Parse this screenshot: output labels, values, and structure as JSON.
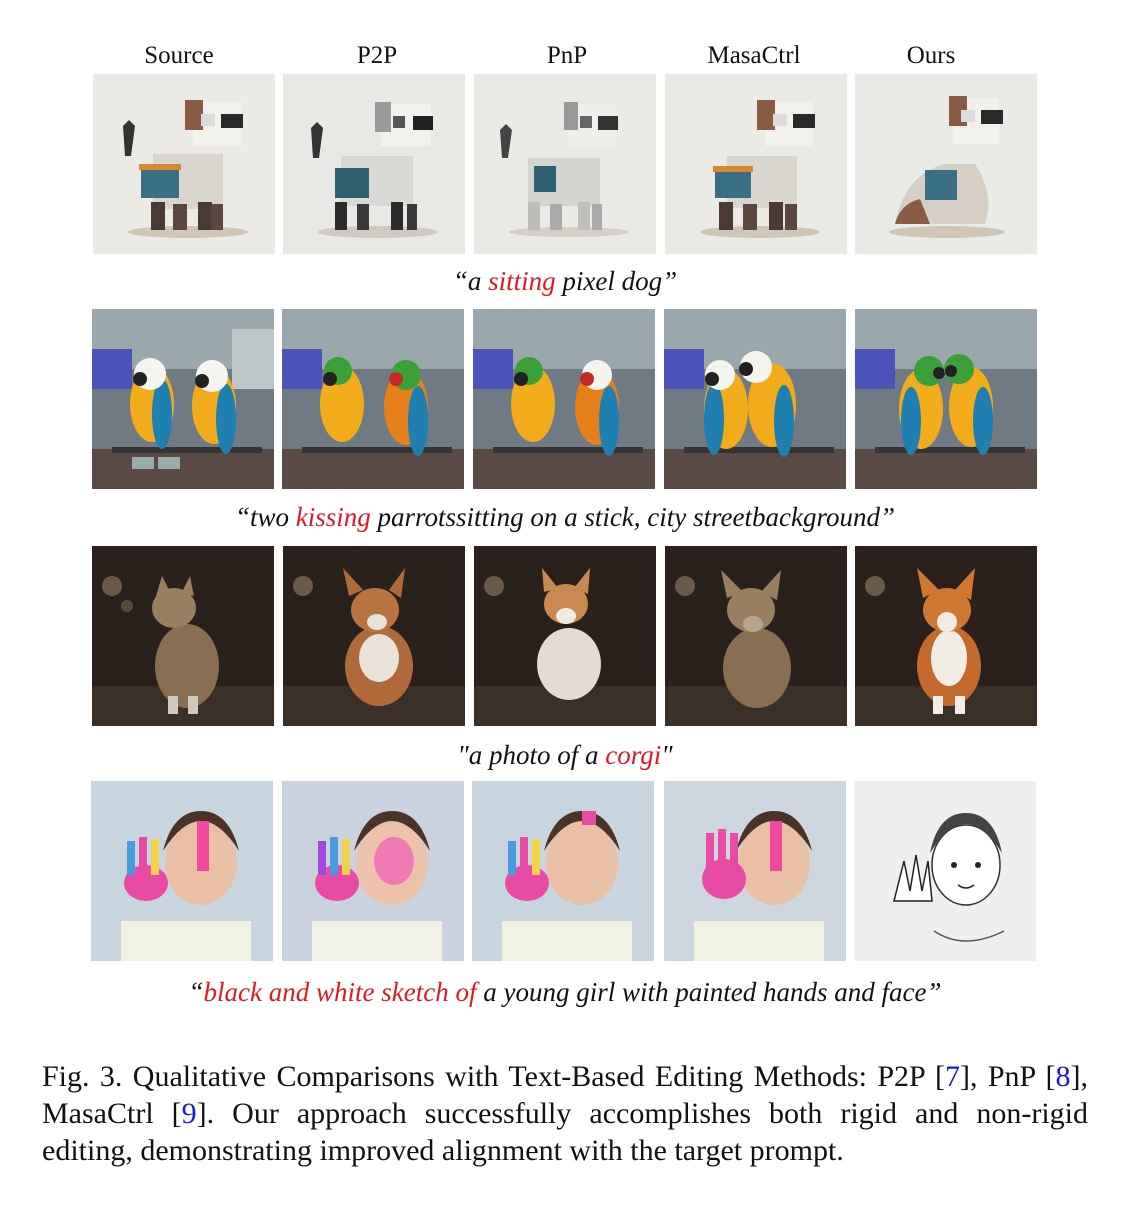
{
  "columns": [
    "Source",
    "P2P",
    "PnP",
    "MasaCtrl",
    "Ours"
  ],
  "prompts": [
    {
      "open": "“a ",
      "highlight": "sitting",
      "rest": " pixel dog”"
    },
    {
      "open": "“two ",
      "highlight": "kissing",
      "rest": " parrotssitting on a stick, city streetbackground”"
    },
    {
      "open": "\"a photo of a ",
      "highlight": "corgi",
      "rest": "\""
    },
    {
      "open": "“",
      "highlight": "black and white sketch of",
      "rest": " a young girl with painted hands and face”"
    }
  ],
  "caption": {
    "part1": "Fig. 3.  Qualitative Comparisons with Text-Based Editing Methods: P2P [",
    "ref1": "7",
    "part2": "], PnP [",
    "ref2": "8",
    "part3": "], MasaCtrl [",
    "ref3": "9",
    "part4": "]. Our approach successfully accomplishes both rigid and non-rigid editing, demonstrating improved alignment with the target prompt."
  },
  "colors": {
    "highlight": "#e0191e",
    "reference": "#1a1adb"
  }
}
